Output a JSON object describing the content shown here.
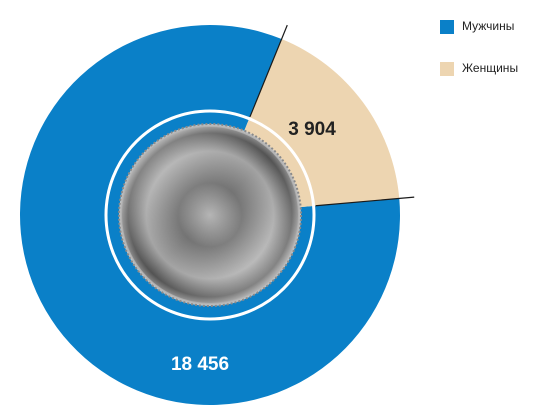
{
  "chart_data": {
    "type": "pie",
    "categories": [
      "Мужчины",
      "Женщины"
    ],
    "values": [
      18456,
      3904
    ],
    "value_labels": [
      "18 456",
      "3 904"
    ],
    "colors": [
      "#0a80c8",
      "#edd5b1"
    ]
  }
}
